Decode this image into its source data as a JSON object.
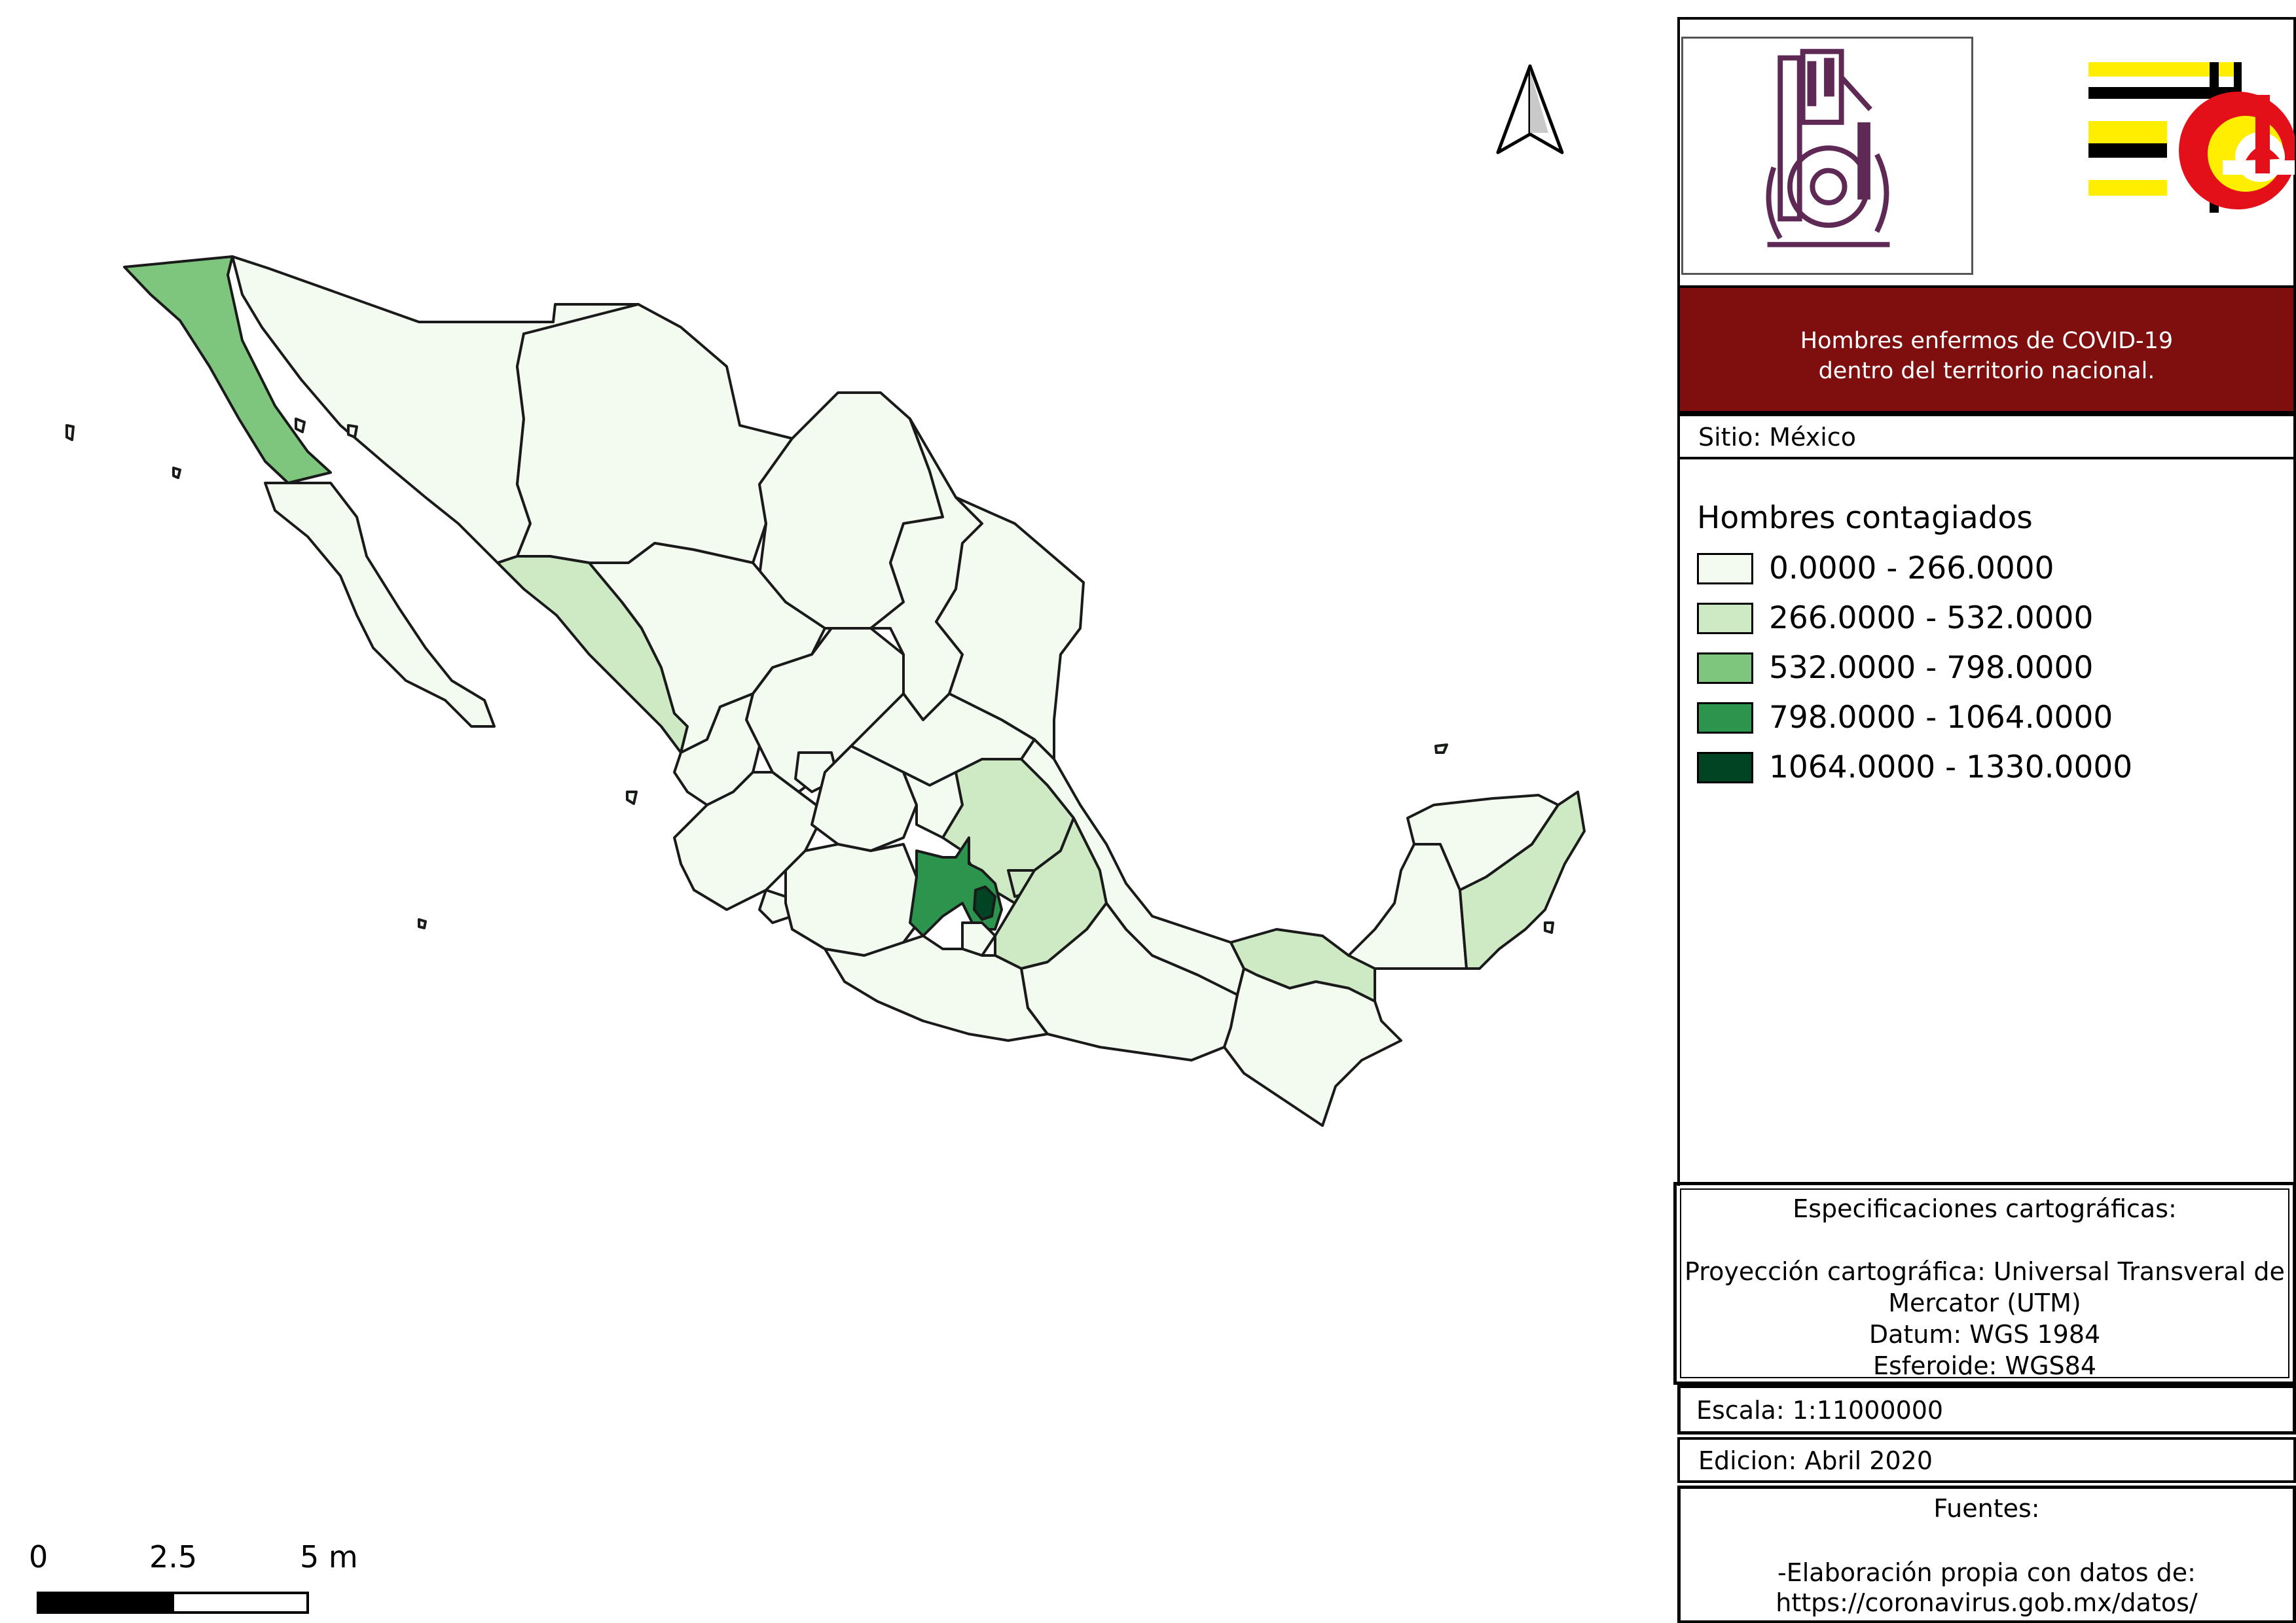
{
  "title_line1": "Hombres enfermos de COVID-19",
  "title_line2": "dentro del territorio nacional.",
  "sitio": "Sitio: México",
  "legend": {
    "title": "Hombres contagiados",
    "classes": [
      {
        "label": "0.0000 - 266.0000",
        "color": "#f3fbf1"
      },
      {
        "label": "266.0000 - 532.0000",
        "color": "#cdeac5"
      },
      {
        "label": "532.0000 - 798.0000",
        "color": "#7ec67e"
      },
      {
        "label": "798.0000 - 1064.0000",
        "color": "#2c944c"
      },
      {
        "label": "1064.0000 - 1330.0000",
        "color": "#004423"
      }
    ]
  },
  "specs": {
    "heading": "Especificaciones cartográficas:",
    "projection_line1": "Proyección cartográfica: Universal Transveral de",
    "projection_line2": "Mercator (UTM)",
    "datum": "Datum: WGS 1984",
    "ellipsoid": "Esferoide: WGS84"
  },
  "escala": "Escala: 1:11000000",
  "edicion": "Edicion: Abril 2020",
  "fuentes": {
    "heading": "Fuentes:",
    "line1": "-Elaboración propia con datos de:",
    "line2": "https://coronavirus.gob.mx/datos/"
  },
  "scale_bar": {
    "tick_0": "0",
    "tick_1": "2.5",
    "tick_2": "5 m"
  },
  "colors": {
    "title_bg": "#7f0f0f",
    "ipn_purple": "#5e2a55",
    "esia_yellow": "#ffee00",
    "esia_red": "#e3101a"
  },
  "icons": {
    "north_arrow": "north-arrow-icon",
    "ipn_logo": "ipn-logo",
    "esia_logo": "esia-logo"
  }
}
